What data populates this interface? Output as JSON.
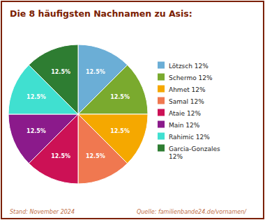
{
  "chart_data": {
    "type": "pie",
    "title": "Die 8 häufigsten Nachnamen zu Asis:",
    "categories": [
      "Lötzsch 12%",
      "Schermo 12%",
      "Ahmet 12%",
      "Samal 12%",
      "Ataie 12%",
      "Main 12%",
      "Rahimic 12%",
      "Garcia-Gonzales\n12%"
    ],
    "values": [
      12.5,
      12.5,
      12.5,
      12.5,
      12.5,
      12.5,
      12.5,
      12.5
    ],
    "value_labels": [
      "12.5%",
      "12.5%",
      "12.5%",
      "12.5%",
      "12.5%",
      "12.5%",
      "12.5%",
      "12.5%"
    ],
    "colors": [
      "#6baed6",
      "#7aaa2e",
      "#f5a800",
      "#f07850",
      "#cc1155",
      "#8b1a8b",
      "#40e0d0",
      "#2e7d32"
    ],
    "data_labels": true,
    "legend": "right",
    "annotations": [
      "Stand: November 2024",
      "Quelle: familienbande24.de/vornamen/"
    ]
  }
}
